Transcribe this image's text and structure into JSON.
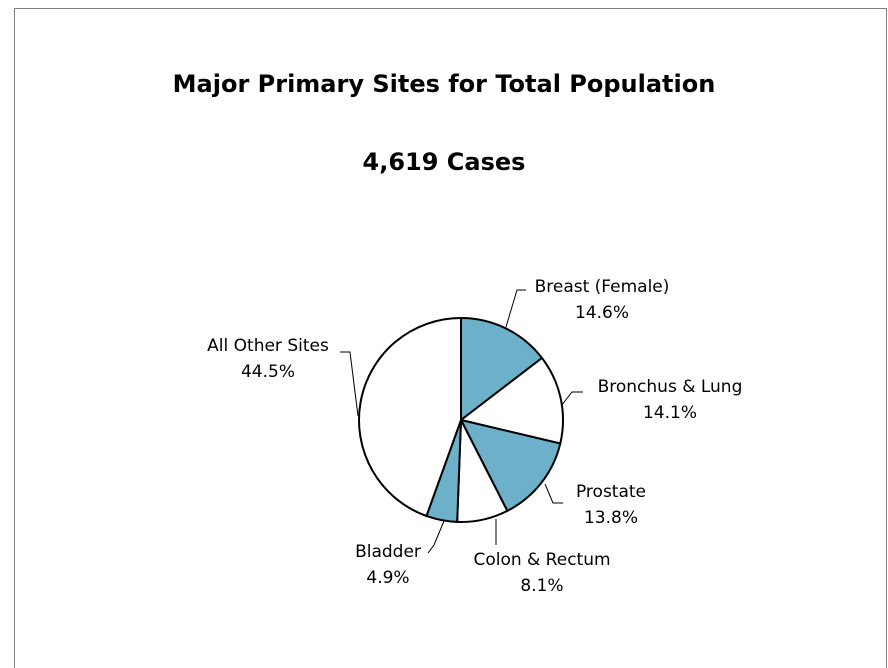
{
  "chart_data": {
    "type": "pie",
    "title": "Major Primary Sites for Total Population",
    "subtitle": "4,619 Cases",
    "slices": [
      {
        "name": "Breast (Female)",
        "value": 14.6,
        "label": "14.6%",
        "color": "#6cb1c9"
      },
      {
        "name": "Bronchus & Lung",
        "value": 14.1,
        "label": "14.1%",
        "color": "#ffffff"
      },
      {
        "name": "Prostate",
        "value": 13.8,
        "label": "13.8%",
        "color": "#6cb1c9"
      },
      {
        "name": "Colon & Rectum",
        "value": 8.1,
        "label": "8.1%",
        "color": "#ffffff"
      },
      {
        "name": "Bladder",
        "value": 4.9,
        "label": "4.9%",
        "color": "#6cb1c9"
      },
      {
        "name": "All Other Sites",
        "value": 44.5,
        "label": "44.5%",
        "color": "#ffffff"
      }
    ]
  }
}
